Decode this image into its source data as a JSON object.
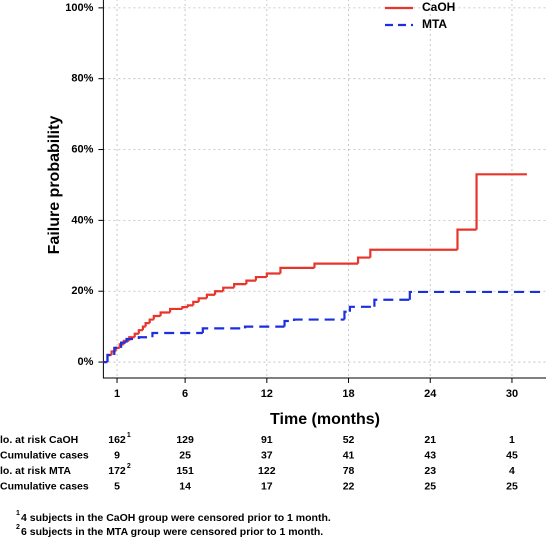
{
  "chart_data": {
    "type": "step",
    "y_label": "Failure probability",
    "x_label": "Time (months)",
    "xlim": [
      0,
      32.5
    ],
    "ylim": [
      -4.5,
      102.5
    ],
    "xticks": [
      1,
      6,
      12,
      18,
      24,
      30
    ],
    "yticks": [
      {
        "value": 0,
        "label": "0%"
      },
      {
        "value": 20,
        "label": "20%"
      },
      {
        "value": 40,
        "label": "40%"
      },
      {
        "value": 60,
        "label": "60%"
      },
      {
        "value": 80,
        "label": "80%"
      },
      {
        "value": 100,
        "label": "100%"
      }
    ],
    "grid": true,
    "legend": "upper right",
    "series": [
      {
        "name": "CaOH",
        "color": "#e8352b",
        "dash": "solid",
        "x": [
          0,
          0.3,
          0.6,
          0.9,
          1.2,
          1.5,
          1.9,
          2.3,
          2.6,
          2.9,
          3.1,
          3.4,
          3.7,
          4.2,
          4.9,
          5.8,
          6.2,
          6.6,
          7.0,
          7.6,
          8.2,
          8.8,
          9.6,
          10.5,
          11.2,
          12.0,
          13.0,
          15.5,
          18.7,
          19.6,
          26.0,
          27.4,
          31.1
        ],
        "values": [
          0,
          2,
          3,
          4,
          5,
          6,
          7,
          8,
          9,
          10,
          11,
          12,
          13,
          14,
          15,
          15.5,
          16,
          17,
          18,
          19,
          20,
          21,
          22,
          23,
          24,
          25,
          26.6,
          27.8,
          29.5,
          31.7,
          37.4,
          53,
          53
        ]
      },
      {
        "name": "MTA",
        "color": "#1c2fe0",
        "dash": "dashed",
        "x": [
          0,
          0.3,
          0.8,
          1.3,
          1.7,
          2.6,
          3.6,
          7.3,
          10.4,
          13.3,
          14.0,
          17.7,
          18.1,
          19.9,
          22.5,
          32.5
        ],
        "values": [
          0,
          2,
          4,
          5.5,
          6.5,
          7,
          8.2,
          9.5,
          10,
          11.6,
          12,
          14.2,
          15.6,
          17.6,
          19.8,
          19.8
        ]
      }
    ]
  },
  "risk_table": {
    "rows": [
      {
        "label": "lo. at risk CaOH",
        "values": [
          "162",
          "129",
          "91",
          "52",
          "21",
          "1"
        ],
        "first_note": "1"
      },
      {
        "label": "Cumulative cases",
        "values": [
          "9",
          "25",
          "37",
          "41",
          "43",
          "45"
        ]
      },
      {
        "label": "lo. at risk MTA",
        "values": [
          "172",
          "151",
          "122",
          "78",
          "23",
          "4"
        ],
        "first_note": "2"
      },
      {
        "label": "Cumulative cases",
        "values": [
          "5",
          "14",
          "17",
          "22",
          "25",
          "25"
        ]
      }
    ]
  },
  "footnotes": [
    {
      "mark": "1",
      "text": "4 subjects in the CaOH group were censored prior to 1 month."
    },
    {
      "mark": "2",
      "text": "6 subjects in the MTA group were censored prior to 1 month."
    }
  ]
}
